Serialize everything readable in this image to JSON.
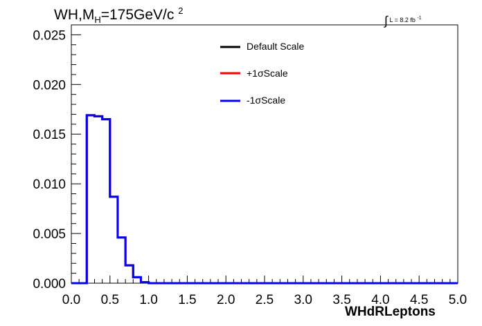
{
  "header": {
    "process": "WH,M",
    "subscript": "H",
    "mass": "=175GeV/c",
    "superscript": "2",
    "lumi_prefix": "L = 8.2 fb",
    "lumi_exp": "-1"
  },
  "legend": [
    {
      "label": "Default Scale",
      "color": "#000000"
    },
    {
      "label": "+1σScale",
      "color": "#ff0000"
    },
    {
      "label": "-1σScale",
      "color": "#0000ff"
    }
  ],
  "chart_data": {
    "type": "histogram",
    "xlabel": "WHdRLeptons",
    "xlim": [
      0.0,
      5.0
    ],
    "ylim": [
      0.0,
      0.026
    ],
    "x_ticks": [
      "0.0",
      "0.5",
      "1.0",
      "1.5",
      "2.0",
      "2.5",
      "3.0",
      "3.5",
      "4.0",
      "4.5",
      "5.0"
    ],
    "y_ticks": [
      "0.000",
      "0.005",
      "0.010",
      "0.015",
      "0.020",
      "0.025"
    ],
    "bin_width": 0.1,
    "bin_edges_start": 0.0,
    "series": [
      {
        "name": "Default Scale",
        "color": "#000000",
        "values": [
          0,
          0,
          0.0169,
          0.0168,
          0.0165,
          0.0087,
          0.0046,
          0.0018,
          0.0006,
          0.0001,
          0,
          0,
          0,
          0,
          0,
          0,
          0,
          0,
          0,
          0,
          0,
          0,
          0,
          0,
          0,
          0,
          0,
          0,
          0,
          0,
          0,
          0,
          0,
          0,
          0,
          0,
          0,
          0,
          0,
          0,
          0,
          0,
          0,
          0,
          0,
          0,
          0,
          0,
          0,
          0
        ]
      },
      {
        "name": "+1σScale",
        "color": "#ff0000",
        "values": [
          0,
          0,
          0.0169,
          0.0168,
          0.0165,
          0.0087,
          0.0046,
          0.0018,
          0.0006,
          0.0001,
          0,
          0,
          0,
          0,
          0,
          0,
          0,
          0,
          0,
          0,
          0,
          0,
          0,
          0,
          0,
          0,
          0,
          0,
          0,
          0,
          0,
          0,
          0,
          0,
          0,
          0,
          0,
          0,
          0,
          0,
          0,
          0,
          0,
          0,
          0,
          0,
          0,
          0,
          0,
          0
        ]
      },
      {
        "name": "-1σScale",
        "color": "#0000ff",
        "values": [
          0,
          0,
          0.0169,
          0.0168,
          0.0165,
          0.0087,
          0.0046,
          0.0018,
          0.0006,
          0.0001,
          0,
          0,
          0,
          0,
          0,
          0,
          0,
          0,
          0,
          0,
          0,
          0,
          0,
          0,
          0,
          0,
          0,
          0,
          0,
          0,
          0,
          0,
          0,
          0,
          0,
          0,
          0,
          0,
          0,
          0,
          0,
          0,
          0,
          0,
          0,
          0,
          0,
          0,
          0,
          0
        ]
      }
    ]
  }
}
